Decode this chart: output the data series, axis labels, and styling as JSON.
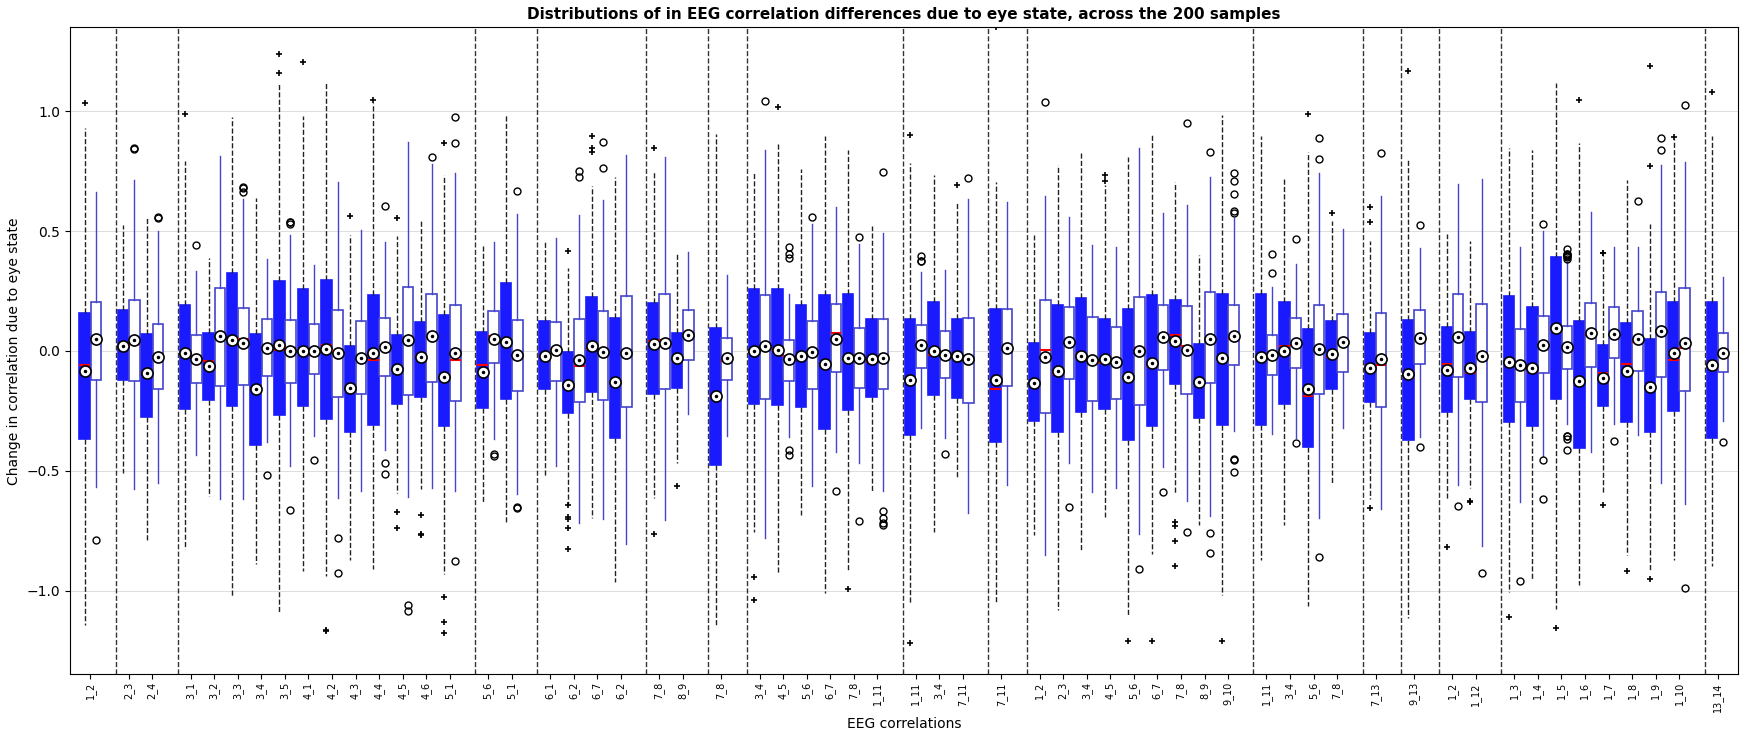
{
  "title": "Distributions of in EEG correlation differences due to eye state, across the 200 samples",
  "xlabel": "EEG correlations",
  "ylabel": "Change in correlation due to eye state",
  "ylim": [
    -1.35,
    1.35
  ],
  "yticks": [
    -1.0,
    -0.5,
    0.0,
    0.5,
    1.0
  ],
  "groups": [
    [
      "1_2"
    ],
    [
      "2_3",
      "2_4"
    ],
    [
      "3_1",
      "3_2",
      "3_3",
      "3_4",
      "3_5",
      "4_1",
      "4_2",
      "4_3",
      "4_4",
      "4_5",
      "4_6",
      "5_1"
    ],
    [
      "5_6",
      "5_1"
    ],
    [
      "6_1",
      "6_2",
      "6_7",
      "6_2"
    ],
    [
      "7_8",
      "8_9"
    ],
    [
      "7_8"
    ],
    [
      "3_4",
      "4_5",
      "5_6",
      "6_7",
      "7_8",
      "1_11"
    ],
    [
      "1_11",
      "3_4",
      "7_11"
    ],
    [
      "7_11"
    ],
    [
      "1_2",
      "2_3",
      "3_4",
      "4_5",
      "5_6",
      "6_7",
      "7_8",
      "8_9",
      "9_10"
    ],
    [
      "1_11",
      "3_4",
      "5_6",
      "7_8"
    ],
    [
      "7_13"
    ],
    [
      "9_13"
    ],
    [
      "1_2",
      "1_12"
    ],
    [
      "1_3",
      "1_4",
      "1_5",
      "1_6",
      "1_7",
      "1_8",
      "1_9",
      "1_10"
    ],
    [
      "13_14"
    ]
  ],
  "background_color": "#ffffff",
  "grid_color": "#d0d0d0",
  "title_fontsize": 11,
  "label_fontsize": 10,
  "tick_fontsize": 7
}
